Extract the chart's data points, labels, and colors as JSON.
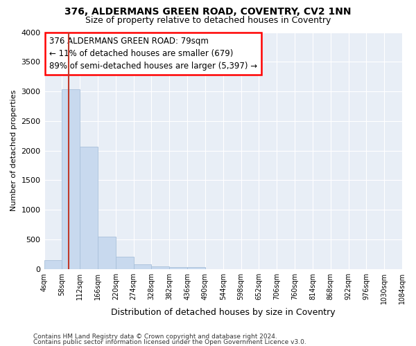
{
  "title1": "376, ALDERMANS GREEN ROAD, COVENTRY, CV2 1NN",
  "title2": "Size of property relative to detached houses in Coventry",
  "xlabel": "Distribution of detached houses by size in Coventry",
  "ylabel": "Number of detached properties",
  "bar_color": "#c8d9ee",
  "bar_edge_color": "#a8c0da",
  "vline_color": "#c0392b",
  "vline_x": 79,
  "bin_edges": [
    4,
    58,
    112,
    166,
    220,
    274,
    328,
    382,
    436,
    490,
    544,
    598,
    652,
    706,
    760,
    814,
    868,
    922,
    976,
    1030,
    1084
  ],
  "bar_heights": [
    150,
    3040,
    2070,
    550,
    205,
    75,
    40,
    35,
    35,
    0,
    0,
    0,
    0,
    0,
    0,
    0,
    0,
    0,
    0,
    0
  ],
  "ylim": [
    0,
    4000
  ],
  "yticks": [
    0,
    500,
    1000,
    1500,
    2000,
    2500,
    3000,
    3500,
    4000
  ],
  "annotation_line1": "376 ALDERMANS GREEN ROAD: 79sqm",
  "annotation_line2": "← 11% of detached houses are smaller (679)",
  "annotation_line3": "89% of semi-detached houses are larger (5,397) →",
  "footer1": "Contains HM Land Registry data © Crown copyright and database right 2024.",
  "footer2": "Contains public sector information licensed under the Open Government Licence v3.0.",
  "bg_color": "#e8eef6",
  "grid_color": "#ffffff",
  "title1_fontsize": 10,
  "title2_fontsize": 9,
  "xlabel_fontsize": 9,
  "ylabel_fontsize": 8,
  "tick_fontsize": 8,
  "annot_fontsize": 8.5,
  "footer_fontsize": 6.5
}
